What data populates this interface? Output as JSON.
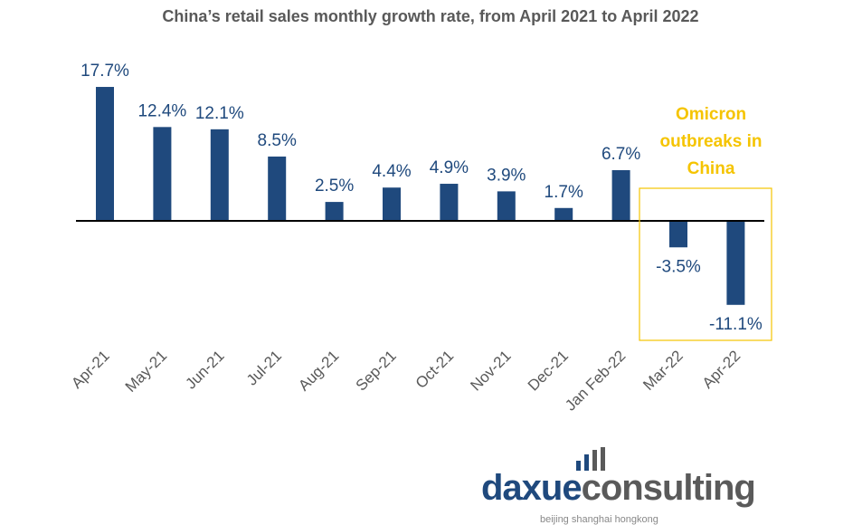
{
  "chart_data": {
    "type": "bar",
    "title": "China’s retail sales monthly growth rate, from April 2021 to April 2022",
    "xlabel": "",
    "ylabel": "",
    "categories": [
      "Apr-21",
      "May-21",
      "Jun-21",
      "Jul-21",
      "Aug-21",
      "Sep-21",
      "Oct-21",
      "Nov-21",
      "Dec-21",
      "Jan Feb-22",
      "Mar-22",
      "Apr-22"
    ],
    "values": [
      17.7,
      12.4,
      12.1,
      8.5,
      2.5,
      4.4,
      4.9,
      3.9,
      1.7,
      6.7,
      -3.5,
      -11.1
    ],
    "data_labels": [
      "17.7%",
      "12.4%",
      "12.1%",
      "8.5%",
      "2.5%",
      "4.4%",
      "4.9%",
      "3.9%",
      "1.7%",
      "6.7%",
      "-3.5%",
      "-11.1%"
    ],
    "ylim": [
      -15,
      20
    ],
    "grid": false,
    "bar_color": "#1f497d",
    "annotation": {
      "lines": [
        "Omicron",
        "outbreaks in",
        "China"
      ],
      "color": "#f5c400"
    }
  },
  "logo": {
    "brand_part1": "daxue",
    "brand_part2": "consulting",
    "tagline": "beijing shanghai hongkong"
  }
}
